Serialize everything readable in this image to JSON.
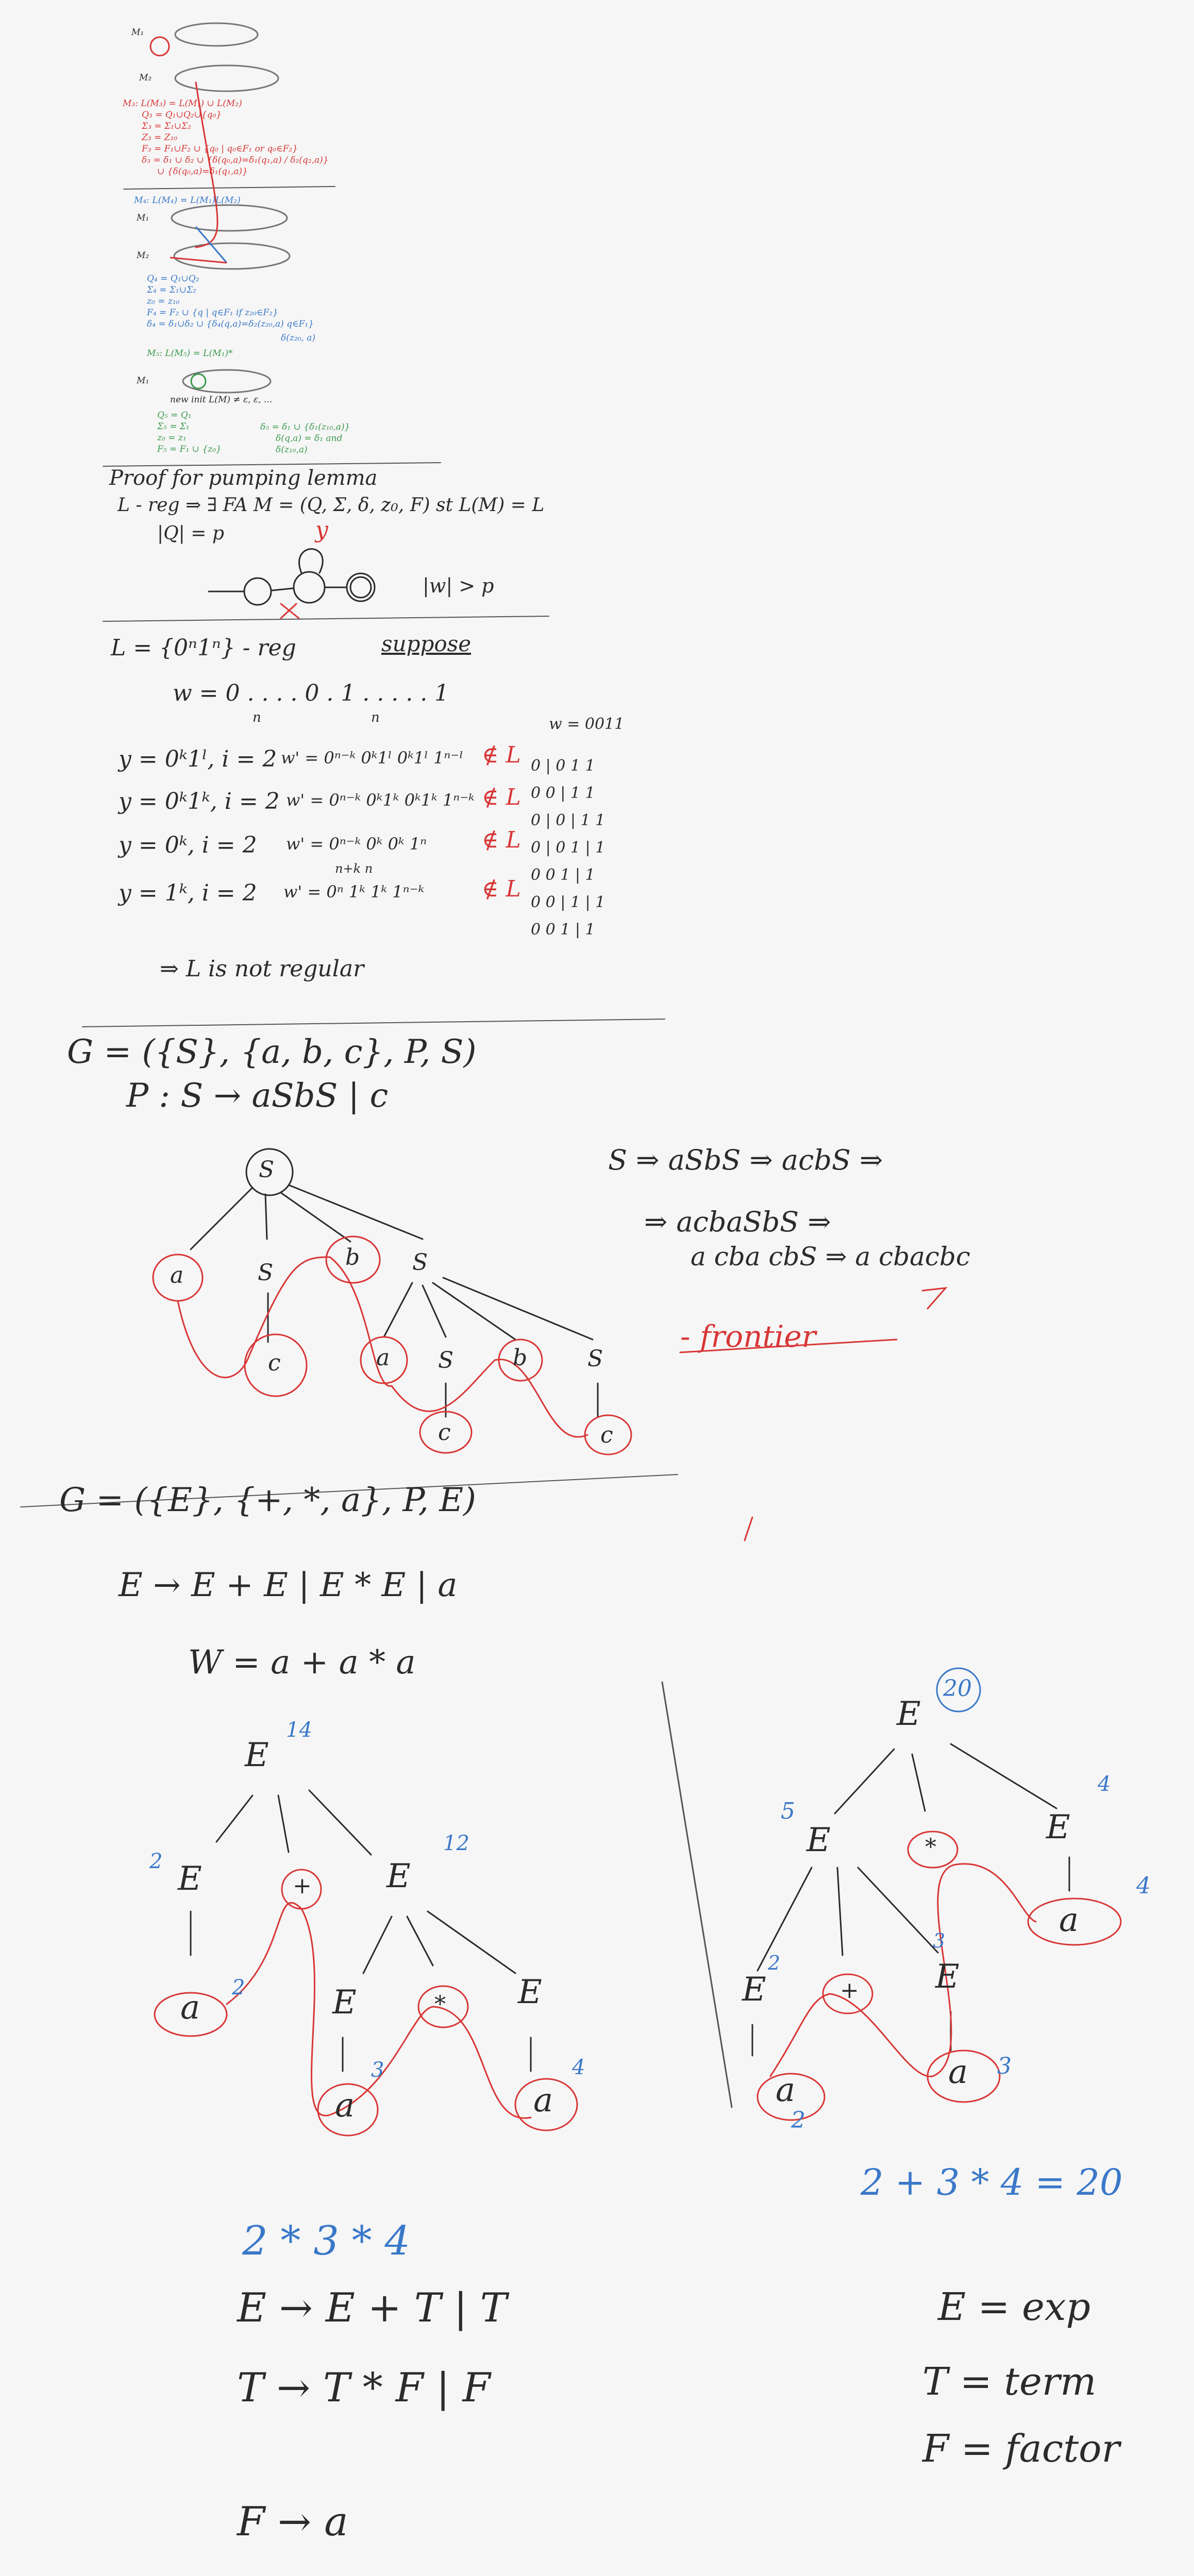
{
  "colors": {
    "ink": "#2b2b2b",
    "red": "#d93636",
    "blue": "#3a78c9",
    "green": "#3a9a4c",
    "paper": "#f6f6f6"
  },
  "automata": {
    "m1": "M₁",
    "m2": "M₂",
    "union_title": "M₃: L(M₃) = L(M₁) ∪ L(M₂)",
    "union_lines": [
      "Q₃ = Q₁∪Q₂∪{q₀}",
      "Σ₃ = Σ₁∪Σ₂",
      "Z₃ = Z₁₀",
      "F₃ = F₁∪F₂ ∪ {q₀ | q₀∈F₁ or q₀∈F₂}",
      "δ₃ = δ₁ ∪ δ₂ ∪ {δ(q₀,a)=δ₁(q₁,a) / δ₂(q₂,a)}",
      "∪ {δ(q₀,a)=δ₁(q₁,a)}"
    ],
    "concat_title": "M₄: L(M₄) = L(M₁)L(M₂)",
    "concat_lines": [
      "Q₄ = Q₁∪Q₂",
      "Σ₄ = Σ₁∪Σ₂",
      "z₀ = z₁₀",
      "F₄ = F₂ ∪ {q | q∈F₁ if z₂₀∈F₂}",
      "δ₄ = δ₁∪δ₂ ∪ {δ₄(q,a)=δ₂(z₂₀,a) q∈F₁}"
    ],
    "concat_note": "δ(z₂₀, a)",
    "star_title": "M₅: L(M₅) = L(M₁)*",
    "star_note": "new init  L(M) ≠ ε, ε, ...",
    "star_lines": [
      "Q₅ = Q₁",
      "Σ₅ = Σ₁",
      "z₀ = z₁",
      "F₅ = F₁ ∪ {z₀}"
    ],
    "star_delta": [
      "δ₅ = δ₁ ∪ {δ₁(z₁₀,a)}",
      "δ(q,a) = δ₁ and",
      "δ(z₁₀,a)"
    ]
  },
  "pumping": {
    "title": "Proof for pumping lemma",
    "line1": "L - reg ⇒ ∃ FA   M = (Q, Σ, δ, z₀, F) st L(M) = L",
    "line2": "|Q| = p",
    "y_label": "y",
    "w_cond": "|w| > p"
  },
  "nonreg": {
    "lang": "L = {0ⁿ1ⁿ} - reg",
    "suppose": "suppose",
    "w_def": "w =  0 . . . . 0 . 1 . . . . . 1",
    "n_marks": [
      "n",
      "n"
    ],
    "rows": [
      {
        "y": "y = 0ᵏ1ˡ, i = 2",
        "w": "w' = 0ⁿ⁻ᵏ 0ᵏ1ˡ 0ᵏ1ˡ 1ⁿ⁻ˡ",
        "r": "∉ L"
      },
      {
        "y": "y = 0ᵏ1ᵏ, i = 2",
        "w": "w' = 0ⁿ⁻ᵏ 0ᵏ1ᵏ 0ᵏ1ᵏ 1ⁿ⁻ᵏ",
        "r": "∉ L"
      },
      {
        "y": "y = 0ᵏ, i = 2",
        "w": "w' = 0ⁿ⁻ᵏ 0ᵏ 0ᵏ 1ⁿ",
        "r": "∉ L"
      },
      {
        "y": "y = 1ᵏ, i = 2",
        "w": "w' = 0ⁿ 1ᵏ 1ᵏ 1ⁿ⁻ᵏ",
        "r": "∉ L"
      }
    ],
    "sub": "n+k      n",
    "example_w": "w = 0011",
    "examples": [
      "0 | 0 1 1",
      "0 0 | 1 1",
      "0 | 0 | 1 1",
      "0 | 0 1 | 1",
      "0 0 1 | 1",
      "0 0 | 1 | 1",
      "0 0 1 | 1"
    ],
    "conclusion": "⇒ L is not regular"
  },
  "grammar1": {
    "g": "G = ({S}, {a, b, c}, P, S)",
    "p": "P :  S → aSbS | c",
    "deriv1": "S ⇒ aSbS ⇒ acbS ⇒",
    "deriv2": "⇒ acbaSbS ⇒",
    "deriv3": "a cba cbS ⇒ a cbacbc",
    "frontier": "- frontier",
    "nodes": {
      "root": "S",
      "a1": "a",
      "s1": "S",
      "b1": "b",
      "s2": "S",
      "c1": "c",
      "a2": "a",
      "s3": "S",
      "b2": "b",
      "s4": "S",
      "c2": "c",
      "c3": "c"
    }
  },
  "grammar2": {
    "g": "G = ({E}, {+, *, a}, P, E)",
    "p": "E → E + E | E * E | a",
    "w": "W =  a + a * a",
    "t1": {
      "root": "E",
      "root_val": "14",
      "e_left": "E",
      "plus": "+",
      "e_right": "E",
      "ll_val": "2",
      "lr_val": "12",
      "a1": "a",
      "a1_val": "2",
      "e3": "E",
      "times": "*",
      "e4": "E",
      "a2": "a",
      "a2_val": "3",
      "a3": "a",
      "a3_val": "4"
    },
    "t2": {
      "root": "E",
      "root_val": "20",
      "e_left": "E",
      "times": "*",
      "e_right": "E",
      "l_val": "5",
      "r_val": "4",
      "a_r": "a",
      "a_r_val": "4",
      "e_ll": "E",
      "plus": "+",
      "e_lr": "E",
      "ll_val": "2",
      "lr_val": "3",
      "a1": "a",
      "a1_val": "2",
      "a2": "a",
      "a2_val": "3"
    },
    "eq": "2 + 3 * 4  =  20"
  },
  "grammar3": {
    "expr": "2 * 3 * 4",
    "rules": [
      "E → E + T | T",
      "T → T * F | F",
      "F → a"
    ],
    "legend": [
      "E = exp",
      "T = term",
      "F = factor"
    ]
  }
}
